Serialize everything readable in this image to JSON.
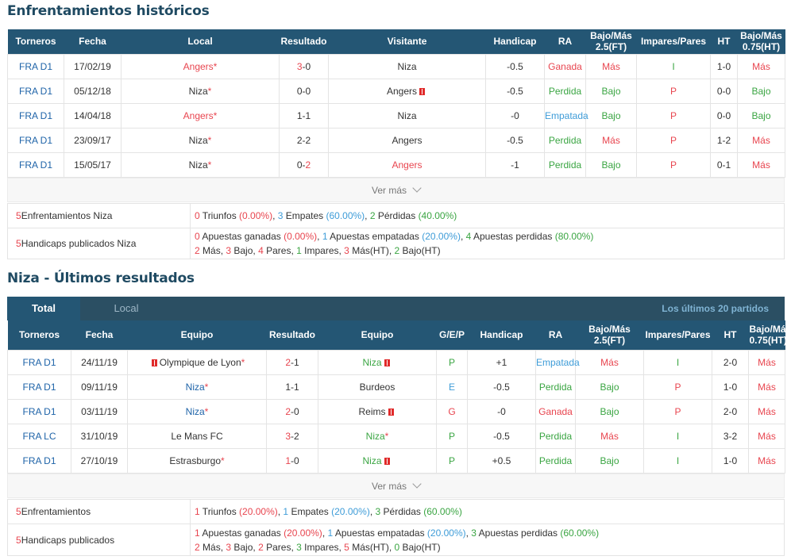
{
  "h2h": {
    "title": "Enfrentamientos históricos",
    "headers": [
      "Torneros",
      "Fecha",
      "Local",
      "Resultado",
      "Visitante",
      "Handicap",
      "RA",
      "Bajo/Más 2.5(FT)",
      "Impares/Pares",
      "HT",
      "Bajo/Más 0.75(HT)"
    ],
    "rows": [
      {
        "torneo": "FRA D1",
        "fecha": "17/02/19",
        "local": "Angers",
        "local_star": "*",
        "res_a": "3",
        "res_sep": "-",
        "res_b": "0",
        "visitante": "Niza",
        "handicap": "-0.5",
        "ra": "Ganada",
        "ou": "Más",
        "op": "I",
        "ht": "1-0",
        "ou_ht": "Más"
      },
      {
        "torneo": "FRA D1",
        "fecha": "05/12/18",
        "local": "Niza",
        "local_star": "*",
        "res_a": "0",
        "res_sep": "-",
        "res_b": "0",
        "visitante": "Angers",
        "handicap": "-0.5",
        "ra": "Perdida",
        "ou": "Bajo",
        "op": "P",
        "ht": "0-0",
        "ou_ht": "Bajo"
      },
      {
        "torneo": "FRA D1",
        "fecha": "14/04/18",
        "local": "Angers",
        "local_star": "*",
        "res_a": "1",
        "res_sep": "-",
        "res_b": "1",
        "visitante": "Niza",
        "handicap": "-0",
        "ra": "Empatada",
        "ou": "Bajo",
        "op": "P",
        "ht": "0-0",
        "ou_ht": "Bajo"
      },
      {
        "torneo": "FRA D1",
        "fecha": "23/09/17",
        "local": "Niza",
        "local_star": "*",
        "res_a": "2",
        "res_sep": "-",
        "res_b": "2",
        "visitante": "Angers",
        "handicap": "-0.5",
        "ra": "Perdida",
        "ou": "Más",
        "op": "P",
        "ht": "1-2",
        "ou_ht": "Más"
      },
      {
        "torneo": "FRA D1",
        "fecha": "15/05/17",
        "local": "Niza",
        "local_star": "*",
        "res_a": "0",
        "res_sep": "-",
        "res_b": "2",
        "visitante": "Angers",
        "handicap": "-1",
        "ra": "Perdida",
        "ou": "Bajo",
        "op": "P",
        "ht": "0-1",
        "ou_ht": "Más"
      }
    ],
    "ver_mas": "Ver más",
    "summary1": {
      "num": "5",
      "label": " Enfrentamientos Niza",
      "w": "0",
      "w_t": " Triunfos ",
      "w_p": "(0.00%)",
      "d": "3",
      "d_t": " Empates ",
      "d_p": "(60.00%)",
      "l": "2",
      "l_t": " Pérdidas ",
      "l_p": "(40.00%)"
    },
    "summary2": {
      "num": "5",
      "label": " Handicaps publicados Niza",
      "a": "0",
      "a_t": " Apuestas ganadas ",
      "a_p": "(0.00%)",
      "b": "1",
      "b_t": " Apuestas empatadas ",
      "b_p": "(20.00%)",
      "c": "4",
      "c_t": " Apuestas perdidas ",
      "c_p": "(80.00%)",
      "m": "2",
      "m_t": " Más, ",
      "bj": "3",
      "bj_t": " Bajo, ",
      "pa": "4",
      "pa_t": " Pares, ",
      "im": "1",
      "im_t": " Impares, ",
      "mht": "3",
      "mht_t": " Más(HT), ",
      "bht": "2",
      "bht_t": " Bajo(HT)"
    }
  },
  "recent": {
    "title": "Niza - Últimos resultados",
    "tab_total": "Total",
    "tab_local": "Local",
    "last_n": "Los últimos 20 partidos",
    "headers": [
      "Torneros",
      "Fecha",
      "Equipo",
      "Resultado",
      "Equipo",
      "G/E/P",
      "Handicap",
      "RA",
      "Bajo/Más 2.5(FT)",
      "Impares/Pares",
      "HT",
      "Bajo/Más 0.75(HT)"
    ],
    "rows": [
      {
        "torneo": "FRA D1",
        "fecha": "24/11/19",
        "home": "Olympique de Lyon",
        "home_star": "*",
        "res_a": "2",
        "res_sep": "-",
        "res_b": "1",
        "away": "Niza",
        "away_star": "",
        "gep": "P",
        "handicap": "+1",
        "ra": "Empatada",
        "ou": "Más",
        "op": "I",
        "ht": "2-0",
        "ou_ht": "Más"
      },
      {
        "torneo": "FRA D1",
        "fecha": "09/11/19",
        "home": "Niza",
        "home_star": "*",
        "res_a": "1",
        "res_sep": "-",
        "res_b": "1",
        "away": "Burdeos",
        "away_star": "",
        "gep": "E",
        "handicap": "-0.5",
        "ra": "Perdida",
        "ou": "Bajo",
        "op": "P",
        "ht": "1-0",
        "ou_ht": "Más"
      },
      {
        "torneo": "FRA D1",
        "fecha": "03/11/19",
        "home": "Niza",
        "home_star": "*",
        "res_a": "2",
        "res_sep": "-",
        "res_b": "0",
        "away": "Reims",
        "away_star": "",
        "gep": "G",
        "handicap": "-0",
        "ra": "Ganada",
        "ou": "Bajo",
        "op": "P",
        "ht": "2-0",
        "ou_ht": "Más"
      },
      {
        "torneo": "FRA LC",
        "fecha": "31/10/19",
        "home": "Le Mans FC",
        "home_star": "",
        "res_a": "3",
        "res_sep": "-",
        "res_b": "2",
        "away": "Niza",
        "away_star": "*",
        "gep": "P",
        "handicap": "-0.5",
        "ra": "Perdida",
        "ou": "Más",
        "op": "I",
        "ht": "3-2",
        "ou_ht": "Más"
      },
      {
        "torneo": "FRA D1",
        "fecha": "27/10/19",
        "home": "Estrasburgo",
        "home_star": "*",
        "res_a": "1",
        "res_sep": "-",
        "res_b": "0",
        "away": "Niza",
        "away_star": "",
        "gep": "P",
        "handicap": "+0.5",
        "ra": "Perdida",
        "ou": "Bajo",
        "op": "I",
        "ht": "1-0",
        "ou_ht": "Más"
      }
    ],
    "ver_mas": "Ver más",
    "summary1": {
      "num": "5",
      "label": " Enfrentamientos",
      "w": "1",
      "w_t": " Triunfos ",
      "w_p": "(20.00%)",
      "d": "1",
      "d_t": " Empates ",
      "d_p": "(20.00%)",
      "l": "3",
      "l_t": " Pérdidas ",
      "l_p": "(60.00%)"
    },
    "summary2": {
      "num": "5",
      "label": " Handicaps publicados",
      "a": "1",
      "a_t": " Apuestas ganadas ",
      "a_p": "(20.00%)",
      "b": "1",
      "b_t": " Apuestas empatadas ",
      "b_p": "(20.00%)",
      "c": "3",
      "c_t": " Apuestas perdidas ",
      "c_p": "(60.00%)",
      "m": "2",
      "m_t": " Más, ",
      "bj": "3",
      "bj_t": " Bajo, ",
      "pa": "2",
      "pa_t": " Pares, ",
      "im": "3",
      "im_t": " Impares, ",
      "mht": "5",
      "mht_t": " Más(HT), ",
      "bht": "0",
      "bht_t": " Bajo(HT)"
    }
  },
  "colors": {
    "header": "#245674",
    "title": "#1f4a62",
    "red": "#e8454f",
    "green": "#3aa542",
    "blue": "#1e63a8",
    "lightblue": "#3e9cd8"
  },
  "icons": {
    "red_card": "red-card-icon",
    "chevron": "chevron-down-icon"
  }
}
